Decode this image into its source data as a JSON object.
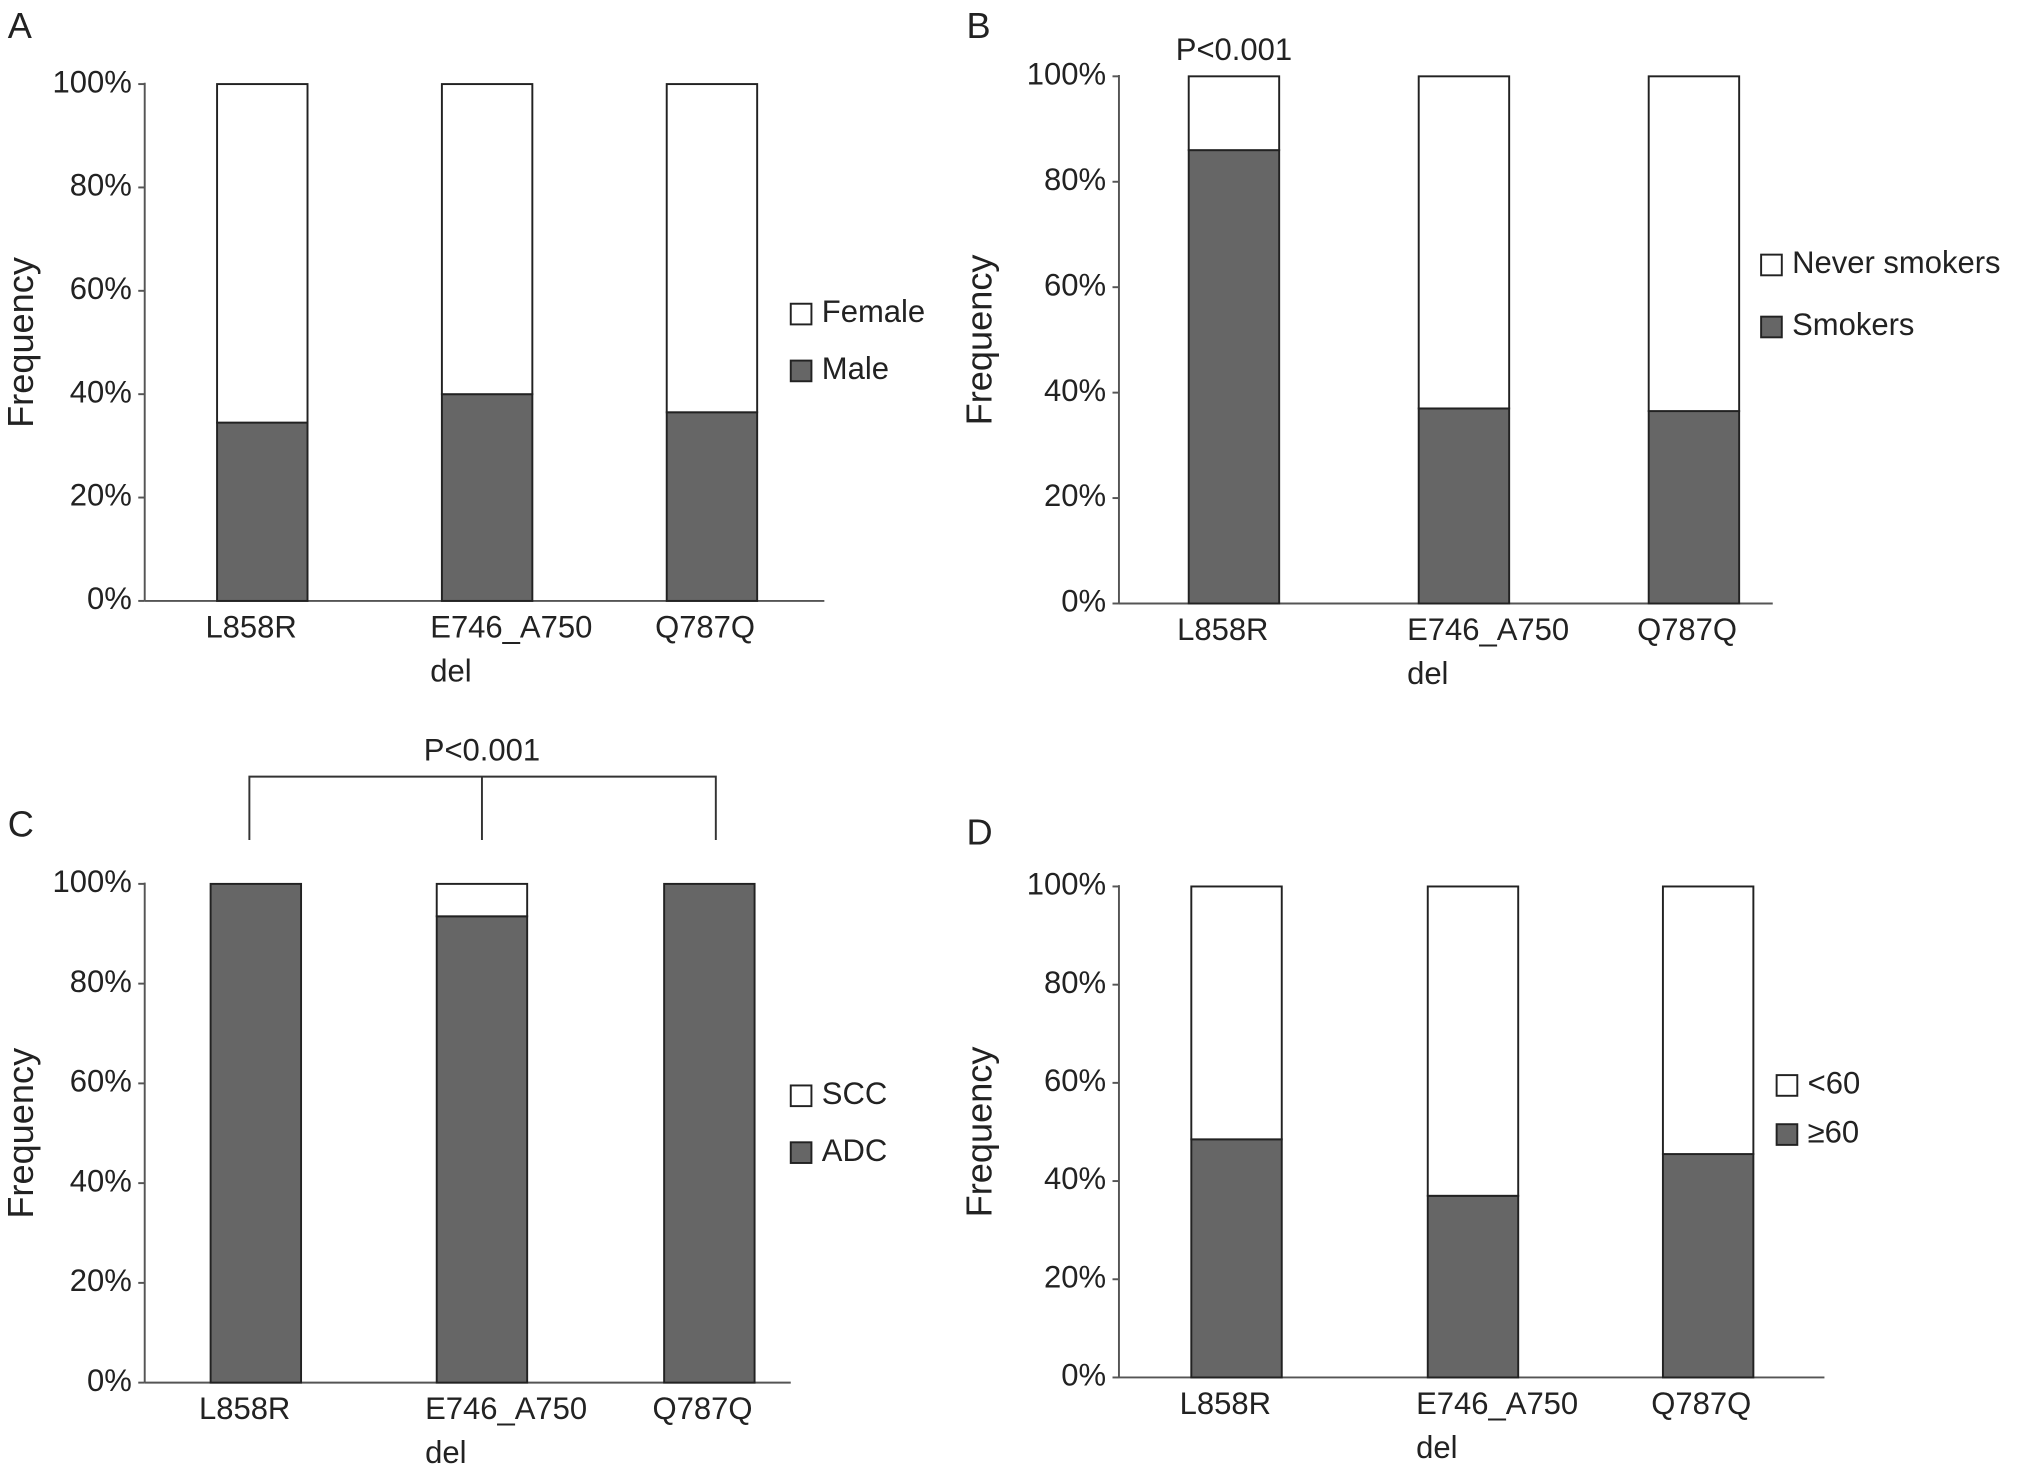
{
  "chart_data": [
    {
      "type": "bar",
      "stacked": true,
      "panel": "A",
      "ylabel": "Frequency",
      "categories": [
        "L858R",
        "E746_A750 del",
        "Q787Q"
      ],
      "series": [
        {
          "name": "Male",
          "color": "#666666",
          "values": [
            34.5,
            40,
            36.5
          ]
        },
        {
          "name": "Female",
          "color": "#ffffff",
          "values": [
            65.5,
            60,
            63.5
          ]
        }
      ],
      "ylim": [
        0,
        100
      ],
      "yticks": [
        {
          "value": 0,
          "label": "0%"
        },
        {
          "value": 20,
          "label": "20%"
        },
        {
          "value": 40,
          "label": "40%"
        },
        {
          "value": 60,
          "label": "60%"
        },
        {
          "value": 80,
          "label": "80%"
        },
        {
          "value": 100,
          "label": "100%"
        }
      ]
    },
    {
      "type": "bar",
      "stacked": true,
      "panel": "B",
      "ylabel": "Frequency",
      "annotation": "P<0.001",
      "categories": [
        "L858R",
        "E746_A750 del",
        "Q787Q"
      ],
      "series": [
        {
          "name": "Smokers",
          "color": "#666666",
          "values": [
            86,
            37,
            36.5
          ]
        },
        {
          "name": "Never smokers",
          "color": "#ffffff",
          "values": [
            14,
            63,
            63.5
          ]
        }
      ],
      "ylim": [
        0,
        100
      ],
      "yticks": [
        {
          "value": 0,
          "label": "0%"
        },
        {
          "value": 20,
          "label": "20%"
        },
        {
          "value": 40,
          "label": "40%"
        },
        {
          "value": 60,
          "label": "60%"
        },
        {
          "value": 80,
          "label": "80%"
        },
        {
          "value": 100,
          "label": "100%"
        }
      ]
    },
    {
      "type": "bar",
      "stacked": true,
      "panel": "C",
      "ylabel": "Frequency",
      "annotation": "P<0.001",
      "categories": [
        "L858R",
        "E746_A750 del",
        "Q787Q"
      ],
      "series": [
        {
          "name": "ADC",
          "color": "#666666",
          "values": [
            100,
            93.5,
            100
          ]
        },
        {
          "name": "SCC",
          "color": "#ffffff",
          "values": [
            0,
            6.5,
            0
          ]
        }
      ],
      "ylim": [
        0,
        100
      ],
      "yticks": [
        {
          "value": 0,
          "label": "0%"
        },
        {
          "value": 20,
          "label": "20%"
        },
        {
          "value": 40,
          "label": "40%"
        },
        {
          "value": 60,
          "label": "60%"
        },
        {
          "value": 80,
          "label": "80%"
        },
        {
          "value": 100,
          "label": "100%"
        }
      ]
    },
    {
      "type": "bar",
      "stacked": true,
      "panel": "D",
      "ylabel": "Frequency",
      "categories": [
        "L858R",
        "E746_A750 del",
        "Q787Q"
      ],
      "series": [
        {
          "name": "≥60",
          "color": "#666666",
          "values": [
            48.5,
            37,
            45.5
          ]
        },
        {
          "name": "<60",
          "color": "#ffffff",
          "values": [
            51.5,
            63,
            54.5
          ]
        }
      ],
      "ylim": [
        0,
        100
      ],
      "yticks": [
        {
          "value": 0,
          "label": "0%"
        },
        {
          "value": 20,
          "label": "20%"
        },
        {
          "value": 40,
          "label": "40%"
        },
        {
          "value": 60,
          "label": "60%"
        },
        {
          "value": 80,
          "label": "80%"
        },
        {
          "value": 100,
          "label": "100%"
        }
      ]
    }
  ]
}
